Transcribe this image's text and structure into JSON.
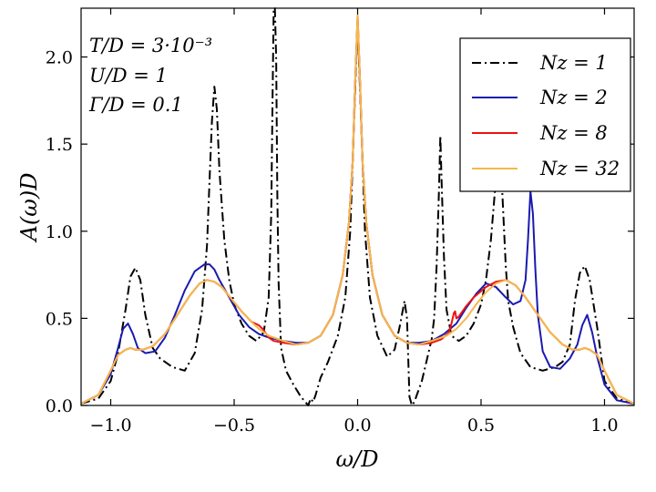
{
  "chart_data": {
    "type": "line",
    "xlabel": "ω/D",
    "ylabel": "A(ω)D",
    "xlim": [
      -1.12,
      1.12
    ],
    "ylim": [
      0.0,
      2.28
    ],
    "xticks": [
      -1.0,
      -0.5,
      0.0,
      0.5,
      1.0
    ],
    "xtick_labels": [
      "−1.0",
      "−0.5",
      "0.0",
      "0.5",
      "1.0"
    ],
    "yticks": [
      0.0,
      0.5,
      1.0,
      1.5,
      2.0
    ],
    "ytick_labels": [
      "0.0",
      "0.5",
      "1.0",
      "1.5",
      "2.0"
    ],
    "grid": false,
    "legend_position": "top-right",
    "annotations": [
      "T/D = 3·10⁻³",
      "U/D = 1",
      "Γ/D = 0.1"
    ],
    "series": [
      {
        "name": "N_z = 1",
        "label": "Nz = 1",
        "color": "#000000",
        "style": "dashdot",
        "x": [
          -1.12,
          -1.05,
          -1.0,
          -0.97,
          -0.94,
          -0.92,
          -0.9,
          -0.88,
          -0.86,
          -0.83,
          -0.8,
          -0.75,
          -0.7,
          -0.66,
          -0.63,
          -0.61,
          -0.6,
          -0.59,
          -0.58,
          -0.57,
          -0.56,
          -0.54,
          -0.52,
          -0.5,
          -0.47,
          -0.44,
          -0.41,
          -0.38,
          -0.36,
          -0.35,
          -0.345,
          -0.34,
          -0.335,
          -0.33,
          -0.325,
          -0.32,
          -0.31,
          -0.29,
          -0.26,
          -0.23,
          -0.2,
          -0.19,
          -0.18,
          -0.17,
          -0.15,
          -0.12,
          -0.08,
          -0.05,
          -0.03,
          -0.015,
          0.0,
          0.015,
          0.03,
          0.05,
          0.08,
          0.12,
          0.15,
          0.17,
          0.19,
          0.2,
          0.21,
          0.22,
          0.23,
          0.24,
          0.26,
          0.28,
          0.3,
          0.31,
          0.32,
          0.33,
          0.335,
          0.34,
          0.35,
          0.36,
          0.38,
          0.41,
          0.44,
          0.47,
          0.5,
          0.52,
          0.54,
          0.56,
          0.57,
          0.58,
          0.59,
          0.6,
          0.61,
          0.63,
          0.66,
          0.7,
          0.75,
          0.8,
          0.83,
          0.86,
          0.88,
          0.9,
          0.92,
          0.94,
          0.97,
          1.0,
          1.05,
          1.12
        ],
        "y": [
          0.01,
          0.04,
          0.14,
          0.3,
          0.55,
          0.74,
          0.79,
          0.72,
          0.52,
          0.33,
          0.27,
          0.22,
          0.2,
          0.3,
          0.55,
          0.92,
          1.28,
          1.63,
          1.83,
          1.7,
          1.35,
          0.95,
          0.72,
          0.58,
          0.47,
          0.4,
          0.37,
          0.42,
          0.62,
          1.1,
          1.7,
          2.28,
          2.28,
          2.0,
          1.2,
          0.7,
          0.33,
          0.2,
          0.12,
          0.05,
          0.0,
          0.04,
          0.02,
          0.06,
          0.16,
          0.25,
          0.4,
          0.62,
          1.0,
          1.6,
          2.2,
          1.6,
          1.0,
          0.62,
          0.4,
          0.28,
          0.32,
          0.45,
          0.6,
          0.5,
          0.05,
          0.0,
          0.02,
          0.06,
          0.14,
          0.26,
          0.38,
          0.5,
          0.8,
          1.25,
          1.55,
          1.3,
          0.85,
          0.55,
          0.4,
          0.37,
          0.4,
          0.47,
          0.58,
          0.72,
          0.95,
          1.3,
          1.48,
          1.4,
          1.1,
          0.8,
          0.6,
          0.45,
          0.3,
          0.22,
          0.2,
          0.22,
          0.25,
          0.35,
          0.6,
          0.76,
          0.8,
          0.72,
          0.45,
          0.14,
          0.04,
          0.01
        ]
      },
      {
        "name": "N_z = 2",
        "label": "Nz = 2",
        "color": "#1a1ab0",
        "style": "solid",
        "x": [
          -1.12,
          -1.05,
          -1.0,
          -0.97,
          -0.95,
          -0.93,
          -0.91,
          -0.89,
          -0.86,
          -0.82,
          -0.78,
          -0.74,
          -0.7,
          -0.66,
          -0.62,
          -0.6,
          -0.58,
          -0.56,
          -0.52,
          -0.48,
          -0.44,
          -0.4,
          -0.36,
          -0.3,
          -0.25,
          -0.2,
          -0.15,
          -0.1,
          -0.06,
          -0.035,
          -0.02,
          -0.01,
          0.0,
          0.01,
          0.02,
          0.035,
          0.06,
          0.1,
          0.15,
          0.2,
          0.25,
          0.3,
          0.35,
          0.4,
          0.44,
          0.48,
          0.52,
          0.56,
          0.6,
          0.63,
          0.66,
          0.68,
          0.69,
          0.7,
          0.71,
          0.72,
          0.73,
          0.75,
          0.78,
          0.82,
          0.86,
          0.89,
          0.91,
          0.93,
          0.95,
          0.97,
          1.0,
          1.05,
          1.12
        ],
        "y": [
          0.01,
          0.06,
          0.18,
          0.33,
          0.44,
          0.47,
          0.41,
          0.33,
          0.3,
          0.31,
          0.39,
          0.52,
          0.66,
          0.77,
          0.81,
          0.81,
          0.78,
          0.72,
          0.62,
          0.52,
          0.45,
          0.41,
          0.39,
          0.37,
          0.36,
          0.36,
          0.4,
          0.52,
          0.75,
          1.05,
          1.4,
          1.85,
          2.22,
          1.85,
          1.4,
          1.05,
          0.75,
          0.52,
          0.4,
          0.36,
          0.36,
          0.37,
          0.41,
          0.47,
          0.56,
          0.64,
          0.7,
          0.68,
          0.62,
          0.58,
          0.6,
          0.72,
          0.95,
          1.23,
          1.1,
          0.78,
          0.52,
          0.31,
          0.22,
          0.21,
          0.27,
          0.35,
          0.46,
          0.52,
          0.42,
          0.28,
          0.12,
          0.03,
          0.01
        ]
      },
      {
        "name": "N_z = 8",
        "label": "Nz = 8",
        "color": "#ee1111",
        "style": "solid",
        "x": [
          -1.12,
          -1.05,
          -1.0,
          -0.97,
          -0.94,
          -0.92,
          -0.9,
          -0.87,
          -0.83,
          -0.78,
          -0.73,
          -0.68,
          -0.64,
          -0.61,
          -0.58,
          -0.55,
          -0.51,
          -0.47,
          -0.43,
          -0.4,
          -0.385,
          -0.37,
          -0.36,
          -0.34,
          -0.3,
          -0.25,
          -0.2,
          -0.15,
          -0.1,
          -0.06,
          -0.035,
          -0.02,
          -0.01,
          0.0,
          0.01,
          0.02,
          0.035,
          0.06,
          0.1,
          0.15,
          0.2,
          0.25,
          0.3,
          0.34,
          0.37,
          0.38,
          0.39,
          0.395,
          0.4,
          0.41,
          0.42,
          0.44,
          0.47,
          0.52,
          0.56,
          0.6,
          0.64,
          0.68,
          0.73,
          0.78,
          0.83,
          0.87,
          0.9,
          0.92,
          0.94,
          0.97,
          1.0,
          1.05,
          1.12
        ],
        "y": [
          0.01,
          0.06,
          0.2,
          0.29,
          0.32,
          0.33,
          0.32,
          0.32,
          0.34,
          0.41,
          0.52,
          0.63,
          0.7,
          0.72,
          0.71,
          0.68,
          0.61,
          0.54,
          0.48,
          0.46,
          0.44,
          0.41,
          0.39,
          0.37,
          0.36,
          0.35,
          0.36,
          0.4,
          0.52,
          0.75,
          1.05,
          1.4,
          1.85,
          2.24,
          1.85,
          1.4,
          1.05,
          0.75,
          0.52,
          0.4,
          0.36,
          0.35,
          0.36,
          0.38,
          0.42,
          0.47,
          0.53,
          0.54,
          0.5,
          0.51,
          0.53,
          0.57,
          0.62,
          0.68,
          0.71,
          0.72,
          0.69,
          0.62,
          0.52,
          0.42,
          0.35,
          0.32,
          0.32,
          0.33,
          0.32,
          0.29,
          0.2,
          0.06,
          0.01
        ]
      },
      {
        "name": "N_z = 32",
        "label": "Nz = 32",
        "color": "#f5b84a",
        "style": "solid",
        "x": [
          -1.12,
          -1.05,
          -1.0,
          -0.97,
          -0.94,
          -0.92,
          -0.9,
          -0.87,
          -0.83,
          -0.78,
          -0.73,
          -0.68,
          -0.64,
          -0.61,
          -0.58,
          -0.55,
          -0.51,
          -0.47,
          -0.43,
          -0.4,
          -0.36,
          -0.3,
          -0.25,
          -0.2,
          -0.15,
          -0.1,
          -0.06,
          -0.035,
          -0.02,
          -0.01,
          0.0,
          0.01,
          0.02,
          0.035,
          0.06,
          0.1,
          0.15,
          0.2,
          0.25,
          0.3,
          0.36,
          0.4,
          0.44,
          0.48,
          0.52,
          0.56,
          0.6,
          0.64,
          0.68,
          0.73,
          0.78,
          0.83,
          0.87,
          0.9,
          0.92,
          0.94,
          0.97,
          1.0,
          1.05,
          1.12
        ],
        "y": [
          0.01,
          0.06,
          0.2,
          0.29,
          0.32,
          0.33,
          0.32,
          0.32,
          0.34,
          0.41,
          0.52,
          0.63,
          0.7,
          0.72,
          0.71,
          0.68,
          0.61,
          0.54,
          0.48,
          0.44,
          0.4,
          0.37,
          0.35,
          0.36,
          0.4,
          0.52,
          0.75,
          1.05,
          1.4,
          1.85,
          2.24,
          1.85,
          1.4,
          1.05,
          0.75,
          0.52,
          0.4,
          0.36,
          0.35,
          0.37,
          0.4,
          0.44,
          0.5,
          0.58,
          0.65,
          0.7,
          0.72,
          0.69,
          0.62,
          0.52,
          0.42,
          0.35,
          0.32,
          0.32,
          0.33,
          0.32,
          0.29,
          0.2,
          0.06,
          0.01
        ]
      }
    ]
  }
}
